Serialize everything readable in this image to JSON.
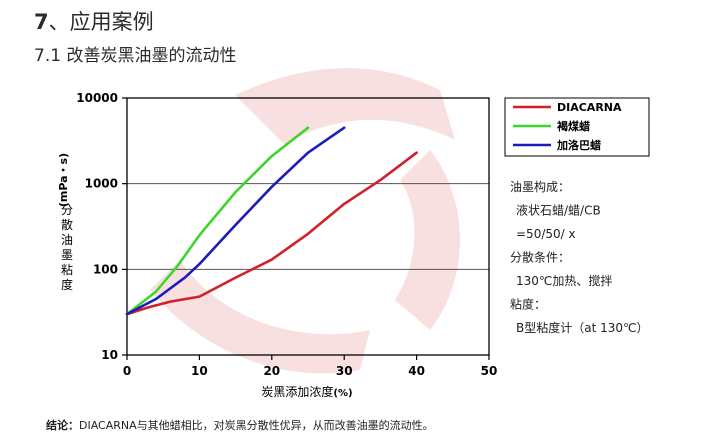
{
  "heading": {
    "number": "7",
    "title": "、应用案例"
  },
  "subheading": "7.1 改善炭黑油墨的流动性",
  "conclusion": {
    "label": "结论：",
    "text": "DIACARNA与其他蜡相比，对炭黑分散性优异，从而改善油墨的流动性。"
  },
  "notes": [
    "油墨构成：",
    "液状石蜡/蜡/CB",
    "=50/50/ x",
    "分散条件：",
    "130℃加热、搅拌",
    "粘度：",
    "B型粘度计（at 130℃）"
  ],
  "colors": {
    "DIACARNA": "#d21f2a",
    "褐煤蜡": "#3fd62c",
    "加洛巴蜡": "#1c1cb8",
    "watermark": "#f6dcdc"
  },
  "chart_data": {
    "type": "line",
    "title": "",
    "xlabel": "炭黑添加浓度（%）",
    "ylabel": "分散油墨粘度（mPa・s）",
    "ylabel_chars": [
      "分",
      "散",
      "油",
      "墨",
      "粘",
      "度"
    ],
    "ylabel_unit": "(mPa・s)",
    "xlabel_main": "炭黑添加浓度",
    "xlabel_unit": "(%)",
    "xlim": [
      0,
      50
    ],
    "ylim": [
      10,
      10000
    ],
    "yscale": "log",
    "x_ticks": [
      0,
      10,
      20,
      30,
      40,
      50
    ],
    "y_ticks": [
      10,
      100,
      1000,
      10000
    ],
    "grid": "horizontal",
    "legend_position": "right",
    "series": [
      {
        "name": "DIACARNA",
        "x": [
          0,
          3,
          6,
          10,
          15,
          20,
          25,
          30,
          35,
          40
        ],
        "y": [
          30,
          36,
          42,
          48,
          80,
          130,
          260,
          580,
          1100,
          2300
        ]
      },
      {
        "name": "褐煤蜡",
        "x": [
          0,
          4,
          7,
          10,
          15,
          20,
          25
        ],
        "y": [
          30,
          55,
          110,
          250,
          800,
          2100,
          4500
        ]
      },
      {
        "name": "加洛巴蜡",
        "x": [
          0,
          4,
          8,
          10,
          15,
          20,
          25,
          30
        ],
        "y": [
          30,
          45,
          80,
          115,
          330,
          920,
          2300,
          4500
        ]
      }
    ]
  }
}
